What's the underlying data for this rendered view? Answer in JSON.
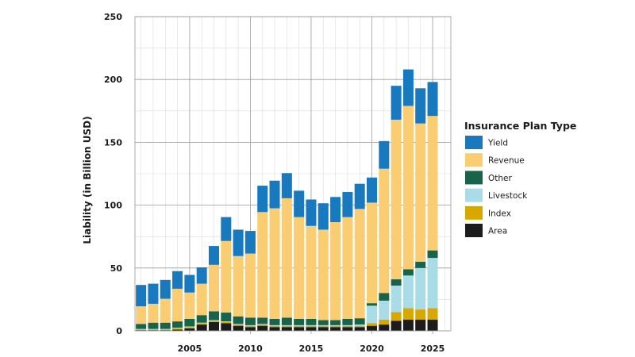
{
  "chart_data": {
    "type": "bar",
    "stacked": true,
    "title": "",
    "xlabel": "",
    "ylabel": "Liability (in Billion USD)",
    "ylim": [
      0,
      250
    ],
    "xlim": [
      2000.5,
      2026.5
    ],
    "yticks": [
      0,
      50,
      100,
      150,
      200,
      250
    ],
    "xticks": [
      2005,
      2010,
      2015,
      2020,
      2025
    ],
    "grid": true,
    "legend_title": "Insurance Plan Type",
    "legend_position": "right",
    "x": [
      2001,
      2002,
      2003,
      2004,
      2005,
      2006,
      2007,
      2008,
      2009,
      2010,
      2011,
      2012,
      2013,
      2014,
      2015,
      2016,
      2017,
      2018,
      2019,
      2020,
      2021,
      2022,
      2023,
      2024,
      2025
    ],
    "series": [
      {
        "name": "Area",
        "color": "#1c1c1c",
        "values": [
          0.5,
          0.5,
          0.5,
          1,
          2,
          5,
          7,
          6,
          4,
          3,
          4,
          3,
          3,
          3,
          3,
          3,
          3,
          3,
          3,
          4,
          5,
          8,
          9,
          9,
          9
        ]
      },
      {
        "name": "Index",
        "color": "#d9a800",
        "values": [
          0.5,
          0.5,
          0.5,
          1,
          1,
          1,
          1,
          1,
          1,
          1,
          1,
          1,
          1,
          1,
          1,
          1,
          1,
          1,
          1,
          2,
          4,
          7,
          9,
          8,
          9
        ]
      },
      {
        "name": "Livestock",
        "color": "#a9dce6",
        "values": [
          0.5,
          0.5,
          0.5,
          0.5,
          0.5,
          0.5,
          0.5,
          0.5,
          0.5,
          0.5,
          0.5,
          0.5,
          0.5,
          0.5,
          0.5,
          0.5,
          0.5,
          0.5,
          1,
          14,
          15,
          21,
          26,
          33,
          40
        ]
      },
      {
        "name": "Other",
        "color": "#17644a",
        "values": [
          4,
          5,
          5,
          5,
          6,
          6,
          7,
          7,
          6,
          6,
          5,
          5,
          6,
          5,
          5,
          4,
          4,
          5,
          5,
          2,
          6,
          5,
          5,
          5,
          6
        ]
      },
      {
        "name": "Revenue",
        "color": "#fbcd72",
        "values": [
          14,
          15,
          19,
          26,
          21,
          25,
          37,
          57,
          48,
          51,
          84,
          88,
          95,
          81,
          74,
          72,
          78,
          81,
          87,
          80,
          99,
          127,
          130,
          110,
          107
        ]
      },
      {
        "name": "Yield",
        "color": "#1879bf",
        "values": [
          17,
          16,
          15,
          14,
          14,
          13,
          15,
          19,
          21,
          18,
          21,
          22,
          20,
          21,
          21,
          21,
          20,
          20,
          20,
          20,
          22,
          27,
          29,
          28,
          27
        ]
      }
    ]
  }
}
